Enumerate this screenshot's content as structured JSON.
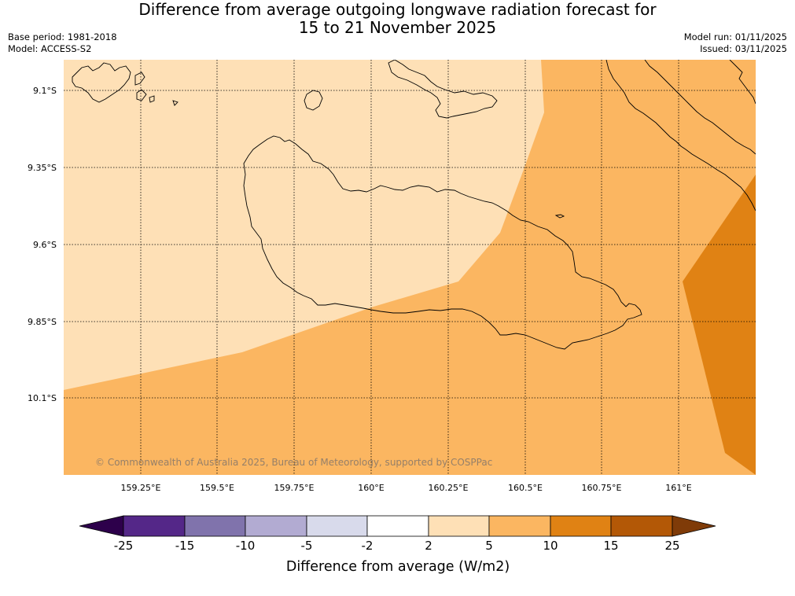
{
  "header": {
    "title_line1": "Difference from average outgoing longwave radiation forecast for",
    "title_line2": "15 to 21 November 2025",
    "base_period": "Base period: 1981-2018",
    "model": "Model: ACCESS-S2",
    "model_run": "Model run: 01/11/2025",
    "issued": "Issued: 03/11/2025"
  },
  "map": {
    "lat_labels": [
      "9.1°S",
      "9.35°S",
      "9.6°S",
      "9.85°S",
      "10.1°S"
    ],
    "lon_labels": [
      "159.25°E",
      "159.5°E",
      "159.75°E",
      "160°E",
      "160.25°E",
      "160.5°E",
      "160.75°E",
      "161°E"
    ],
    "copyright": "© Commonwealth of Australia 2025, Bureau of Meteorology, supported by COSPPac",
    "region_values": {
      "pale": "2 to 5",
      "light_orange": "5 to 10",
      "orange": "10 to 15"
    }
  },
  "legend": {
    "ticks": [
      "-25",
      "-15",
      "-10",
      "-5",
      "-2",
      "2",
      "5",
      "10",
      "15",
      "25"
    ],
    "label": "Difference from average (W/m2)",
    "colors": [
      "#2d004b",
      "#542788",
      "#8073ac",
      "#b2abd2",
      "#d8daeb",
      "#ffffff",
      "#fee0b6",
      "#fbb661",
      "#e08214",
      "#b35806",
      "#7f3b08"
    ]
  }
}
